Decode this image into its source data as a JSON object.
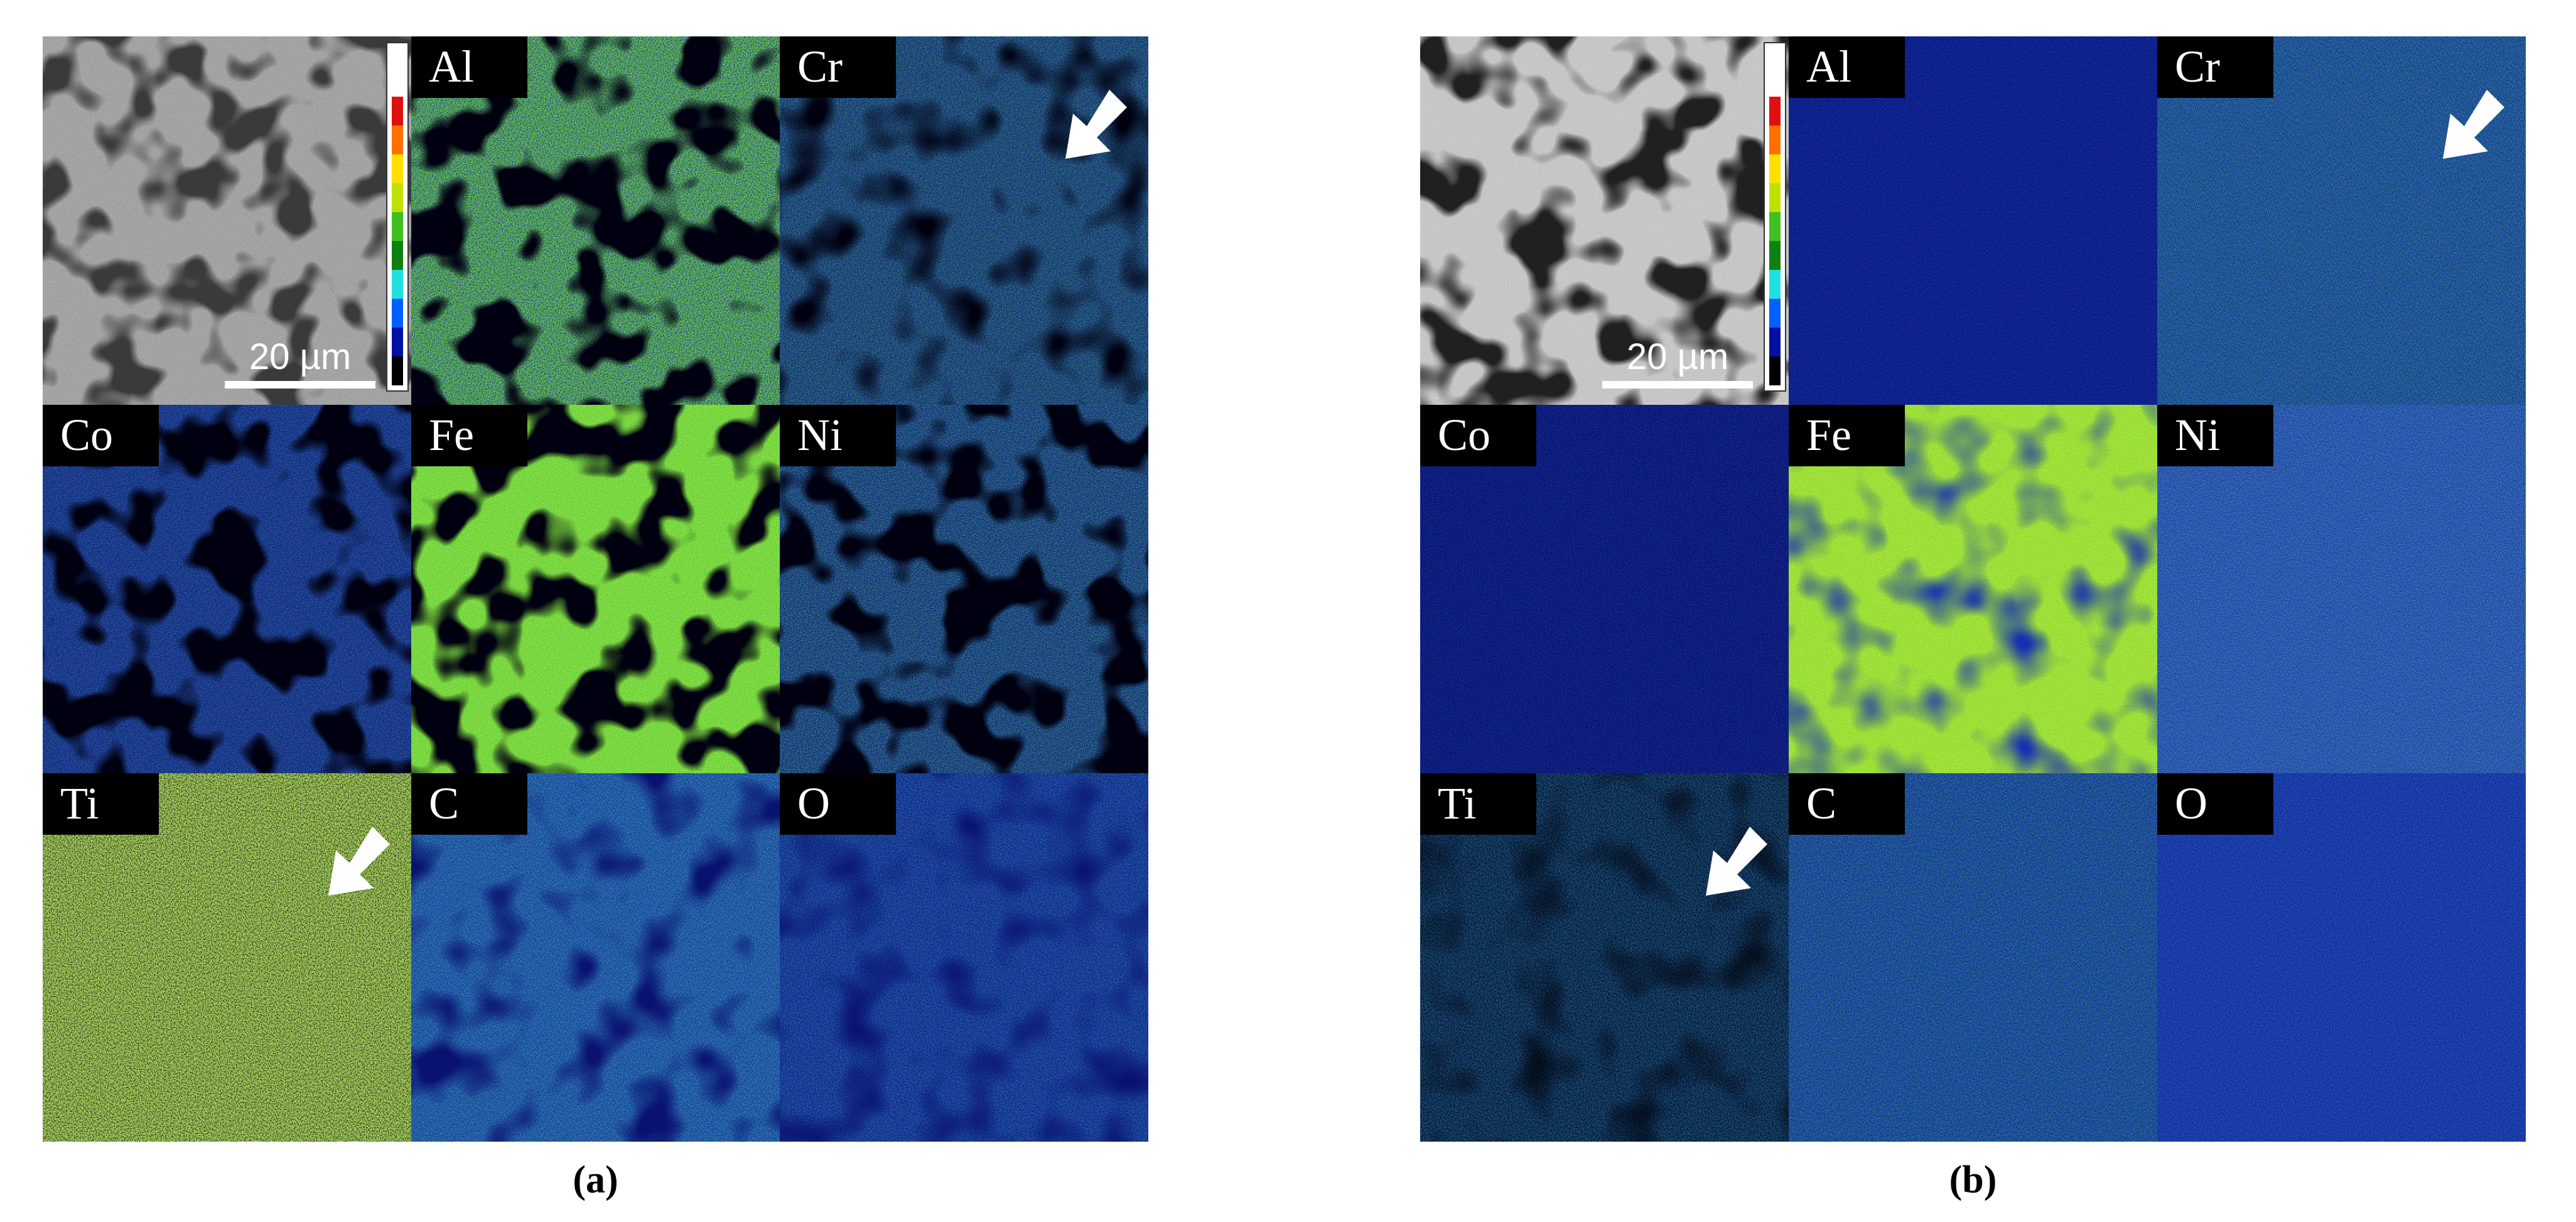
{
  "panels": [
    {
      "caption": "(a)",
      "scale_bar": "20 µm",
      "labels": [
        "Al",
        "Cr",
        "Co",
        "Fe",
        "Ni",
        "Ti",
        "C",
        "O"
      ]
    },
    {
      "caption": "(b)",
      "scale_bar": "20 µm",
      "labels": [
        "Al",
        "Cr",
        "Co",
        "Fe",
        "Ni",
        "Ti",
        "C",
        "O"
      ]
    }
  ]
}
